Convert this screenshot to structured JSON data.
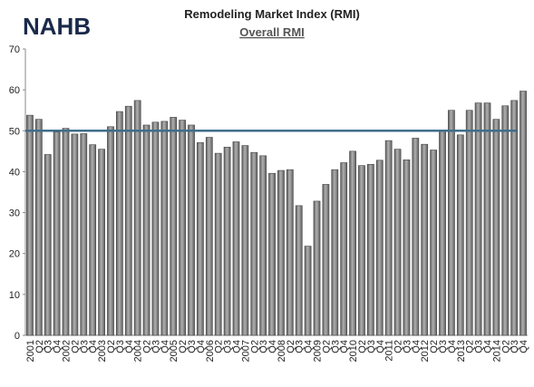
{
  "logo": "NAHB",
  "chart_data": {
    "type": "bar",
    "title": "Remodeling Market Index (RMI)",
    "subtitle": "Overall RMI",
    "categories": [
      "2001",
      "Q2",
      "Q3",
      "Q4",
      "2002",
      "Q2",
      "Q3",
      "Q4",
      "2003",
      "Q2",
      "Q3",
      "Q4",
      "2004",
      "Q2",
      "Q3",
      "Q4",
      "2005",
      "Q2",
      "Q3",
      "Q4",
      "2006",
      "Q2",
      "Q3",
      "Q4",
      "2007",
      "Q2",
      "Q3",
      "Q4",
      "2008",
      "Q2",
      "Q3",
      "Q4",
      "2009",
      "Q2",
      "Q3",
      "Q4",
      "2010",
      "Q2",
      "Q3",
      "Q4",
      "2011",
      "Q2",
      "Q3",
      "Q4",
      "2012",
      "Q2",
      "Q3",
      "Q4",
      "2013",
      "Q2",
      "Q3",
      "Q4",
      "2014",
      "Q2",
      "Q3",
      "Q4"
    ],
    "values": [
      53.8,
      52.8,
      44.2,
      49.7,
      50.6,
      49.2,
      49.3,
      46.6,
      45.5,
      51.0,
      54.7,
      56.0,
      57.4,
      51.4,
      52.1,
      52.3,
      53.3,
      52.6,
      51.4,
      47.1,
      48.4,
      44.5,
      46.0,
      47.3,
      46.4,
      44.7,
      43.9,
      39.6,
      40.3,
      40.5,
      31.7,
      21.8,
      32.8,
      36.9,
      40.5,
      42.2,
      45.0,
      41.5,
      41.8,
      42.8,
      47.6,
      45.5,
      42.9,
      48.2,
      46.7,
      45.3,
      50.1,
      55.0,
      49.0,
      55.0,
      56.8,
      56.8,
      52.8,
      56.1,
      57.4,
      59.7
    ],
    "color": "#8c8c8c",
    "reference_line": 50,
    "reference_color": "#3f6e8c",
    "ylim": [
      0,
      70
    ],
    "yticks": [
      0,
      10,
      20,
      30,
      40,
      50,
      60,
      70
    ],
    "grid": false
  }
}
